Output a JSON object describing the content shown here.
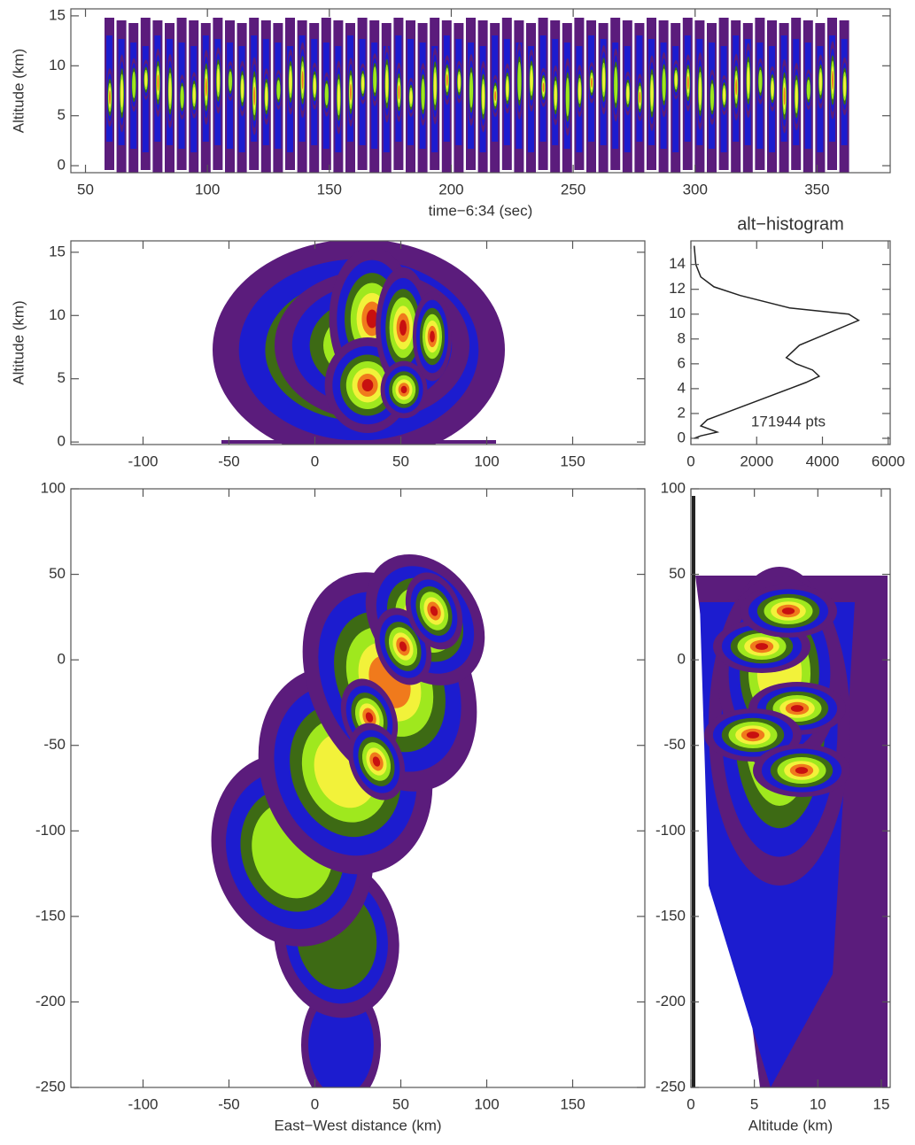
{
  "chart_data": [
    {
      "type": "density",
      "x_label": "time−6:34 (sec)",
      "y_label": "Altitude (km)",
      "xlim": [
        44,
        380
      ],
      "ylim": [
        -0.7,
        15.7
      ],
      "xticks": [
        50,
        100,
        150,
        200,
        250,
        300,
        350
      ],
      "yticks": [
        0,
        5,
        10,
        15
      ]
    },
    {
      "type": "density",
      "y_label": "Altitude (km)",
      "xlim": [
        -142,
        192
      ],
      "ylim": [
        -0.2,
        15.9
      ],
      "xticks": [
        -100,
        -50,
        0,
        50,
        100,
        150
      ],
      "yticks": [
        0,
        5,
        10,
        15
      ]
    },
    {
      "type": "line",
      "title": "alt−histogram",
      "annotation": "171944 pts",
      "color": "#222222",
      "xlim": [
        0,
        6060
      ],
      "ylim": [
        -0.5,
        15.9
      ],
      "xticks": [
        0,
        2000,
        4000,
        6000
      ],
      "yticks": [
        0,
        2,
        4,
        6,
        8,
        10,
        12,
        14
      ],
      "x": [
        100,
        150,
        300,
        700,
        1500,
        3000,
        4800,
        5100,
        4200,
        3300,
        2900,
        3200,
        3700,
        3900,
        3500,
        3000,
        2000,
        1000,
        500,
        300,
        800,
        300,
        100
      ],
      "values": [
        15.5,
        14,
        13,
        12.2,
        11.5,
        10.5,
        10,
        9.5,
        8.5,
        7.5,
        6.5,
        6,
        5.5,
        5,
        4.5,
        4,
        3,
        2,
        1.5,
        1,
        0.5,
        0.2,
        0
      ]
    },
    {
      "type": "density",
      "x_label": "East−West distance (km)",
      "xlim": [
        -142,
        192
      ],
      "ylim": [
        -250,
        100
      ],
      "xticks": [
        -100,
        -50,
        0,
        50,
        100,
        150
      ],
      "yticks": [
        -250,
        -200,
        -150,
        -100,
        -50,
        0,
        50,
        100
      ]
    },
    {
      "type": "density",
      "x_label": "Altitude (km)",
      "xlim": [
        0,
        15.7
      ],
      "ylim": [
        -250,
        100
      ],
      "xticks": [
        0,
        5,
        10,
        15
      ],
      "yticks": [
        -250,
        -200,
        -150,
        -100,
        -50,
        0,
        50,
        100
      ]
    }
  ]
}
